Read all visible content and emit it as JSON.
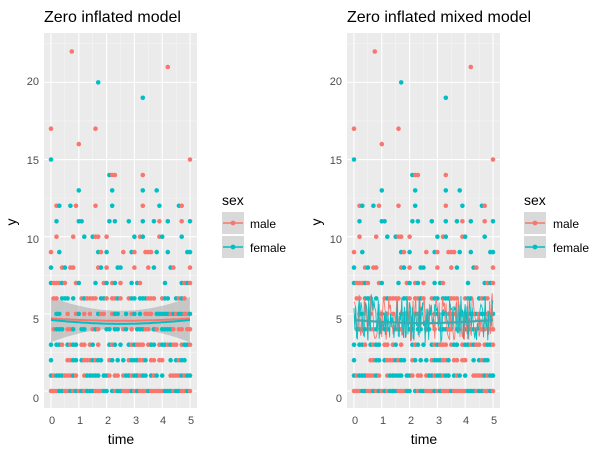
{
  "chart_data": [
    {
      "type": "scatter",
      "title": "Zero inflated model",
      "xlabel": "time",
      "ylabel": "y",
      "xlim": [
        -0.25,
        5.25
      ],
      "ylim": [
        -1.1,
        23.2
      ],
      "xticks": [
        0,
        1,
        2,
        3,
        4,
        5
      ],
      "yticks": [
        0,
        5,
        10,
        15,
        20
      ],
      "x_tick_labels": [
        "0",
        "1",
        "2",
        "3",
        "4",
        "5"
      ],
      "y_tick_labels": [
        "0",
        "5",
        "10",
        "15",
        "20"
      ],
      "legend": {
        "title": "sex",
        "position": "right",
        "entries": [
          {
            "label": "male",
            "color": "#F8766D"
          },
          {
            "label": "female",
            "color": "#00BFC4"
          }
        ]
      },
      "series": [
        {
          "name": "male",
          "color": "#F8766D",
          "fit": "smooth",
          "fit_level": 4.7
        },
        {
          "name": "female",
          "color": "#00BFC4",
          "fit": "smooth",
          "fit_level": 4.6
        }
      ],
      "highlighted_points": [
        {
          "x": 0.0,
          "y": 17,
          "sex": "male"
        },
        {
          "x": 0.75,
          "y": 22,
          "sex": "male"
        },
        {
          "x": 1.7,
          "y": 20,
          "sex": "female"
        },
        {
          "x": 3.3,
          "y": 19,
          "sex": "female"
        },
        {
          "x": 4.2,
          "y": 21,
          "sex": "male"
        },
        {
          "x": 0.0,
          "y": 15,
          "sex": "female"
        },
        {
          "x": 5.0,
          "y": 15,
          "sex": "male"
        },
        {
          "x": 1.6,
          "y": 17,
          "sex": "male"
        },
        {
          "x": 1.0,
          "y": 16,
          "sex": "male"
        }
      ]
    },
    {
      "type": "scatter",
      "title": "Zero inflated mixed model",
      "xlabel": "time",
      "ylabel": "y",
      "xlim": [
        -0.25,
        5.25
      ],
      "ylim": [
        -1.1,
        23.2
      ],
      "xticks": [
        0,
        1,
        2,
        3,
        4,
        5
      ],
      "yticks": [
        0,
        5,
        10,
        15,
        20
      ],
      "x_tick_labels": [
        "0",
        "1",
        "2",
        "3",
        "4",
        "5"
      ],
      "y_tick_labels": [
        "0",
        "5",
        "10",
        "15",
        "20"
      ],
      "legend": {
        "title": "sex",
        "position": "right",
        "entries": [
          {
            "label": "male",
            "color": "#F8766D"
          },
          {
            "label": "female",
            "color": "#00BFC4"
          }
        ]
      },
      "series": [
        {
          "name": "male",
          "color": "#F8766D",
          "fit": "jagged",
          "fit_level": 4.8
        },
        {
          "name": "female",
          "color": "#00BFC4",
          "fit": "jagged",
          "fit_level": 4.6
        }
      ],
      "highlighted_points": [
        {
          "x": 0.0,
          "y": 17,
          "sex": "male"
        },
        {
          "x": 0.75,
          "y": 22,
          "sex": "male"
        },
        {
          "x": 1.7,
          "y": 20,
          "sex": "female"
        },
        {
          "x": 3.3,
          "y": 19,
          "sex": "female"
        },
        {
          "x": 4.2,
          "y": 21,
          "sex": "male"
        },
        {
          "x": 0.0,
          "y": 15,
          "sex": "female"
        },
        {
          "x": 5.0,
          "y": 15,
          "sex": "male"
        },
        {
          "x": 1.6,
          "y": 17,
          "sex": "male"
        },
        {
          "x": 1.0,
          "y": 16,
          "sex": "male"
        }
      ]
    }
  ]
}
